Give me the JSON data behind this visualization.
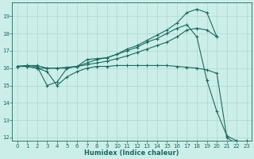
{
  "xlabel": "Humidex (Indice chaleur)",
  "bg_color": "#cceee8",
  "grid_color": "#aad8d0",
  "line_color": "#1a6b60",
  "xlim": [
    -0.5,
    23.5
  ],
  "ylim": [
    11.8,
    19.8
  ],
  "yticks": [
    12,
    13,
    14,
    15,
    16,
    17,
    18,
    19
  ],
  "xticks": [
    0,
    1,
    2,
    3,
    4,
    5,
    6,
    7,
    8,
    9,
    10,
    11,
    12,
    13,
    14,
    15,
    16,
    17,
    18,
    19,
    20,
    21,
    22,
    23
  ],
  "curve1_x": [
    0,
    1,
    2,
    3,
    4,
    5,
    6,
    7,
    8,
    9,
    10,
    11,
    12,
    13,
    14,
    15,
    16,
    17,
    18,
    19,
    20,
    21,
    22
  ],
  "curve1_y": [
    16.1,
    16.15,
    16.15,
    16.0,
    16.0,
    16.05,
    16.1,
    16.5,
    16.55,
    16.6,
    16.8,
    17.0,
    17.2,
    17.5,
    17.7,
    18.0,
    18.3,
    18.5,
    17.8,
    15.3,
    13.5,
    12.1,
    11.8
  ],
  "curve2_x": [
    0,
    1,
    2,
    3,
    4,
    5,
    6,
    7,
    8,
    9,
    10,
    11,
    12,
    13,
    14,
    15,
    16,
    17,
    18,
    19,
    20
  ],
  "curve2_y": [
    16.1,
    16.15,
    16.1,
    15.0,
    15.2,
    16.0,
    16.1,
    16.3,
    16.5,
    16.6,
    16.8,
    17.1,
    17.3,
    17.6,
    17.9,
    18.2,
    18.6,
    19.2,
    19.4,
    19.2,
    17.8
  ],
  "curve3_x": [
    0,
    1,
    2,
    3,
    4,
    5,
    6,
    7,
    8,
    9,
    10,
    11,
    12,
    13,
    14,
    15,
    16,
    17,
    18,
    19,
    20
  ],
  "curve3_y": [
    16.1,
    16.1,
    16.0,
    16.0,
    16.0,
    16.0,
    16.1,
    16.2,
    16.3,
    16.4,
    16.55,
    16.7,
    16.9,
    17.1,
    17.3,
    17.5,
    17.8,
    18.2,
    18.3,
    18.2,
    17.8
  ],
  "curve4_x": [
    0,
    1,
    2,
    3,
    4,
    5,
    6,
    7,
    8,
    9,
    10,
    11,
    12,
    13,
    14,
    15,
    16,
    17,
    18,
    19,
    20,
    21,
    22,
    23
  ],
  "curve4_y": [
    16.1,
    16.1,
    16.0,
    15.8,
    15.0,
    15.5,
    15.8,
    16.0,
    16.1,
    16.1,
    16.15,
    16.15,
    16.15,
    16.15,
    16.15,
    16.15,
    16.1,
    16.05,
    16.0,
    15.9,
    15.7,
    12.0,
    11.6,
    11.8
  ]
}
